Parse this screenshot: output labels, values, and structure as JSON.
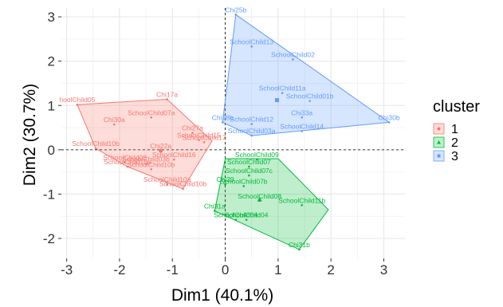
{
  "chart_data": {
    "type": "scatter",
    "xlabel": "Dim1 (40.1%)",
    "ylabel": "Dim2 (30.7%)",
    "xlim": [
      -3.1,
      3.4
    ],
    "ylim": [
      -2.45,
      3.2
    ],
    "xticks": [
      -3,
      -2,
      -1,
      0,
      1,
      2,
      3
    ],
    "yticks": [
      -2,
      -1,
      0,
      1,
      2,
      3
    ],
    "grid": true,
    "legend": {
      "title": "cluster",
      "position": "right",
      "entries": [
        {
          "label": "1",
          "color": "#F8766D"
        },
        {
          "label": "2",
          "color": "#00BA38"
        },
        {
          "label": "3",
          "color": "#619CFF"
        }
      ]
    },
    "series": [
      {
        "name": "1",
        "color": "#F8766D",
        "hull": [
          [
            -2.8,
            1.02
          ],
          [
            -1.1,
            1.14
          ],
          [
            -0.25,
            0.2
          ],
          [
            -0.8,
            -0.88
          ],
          [
            -1.85,
            -0.38
          ],
          [
            -2.45,
            0.03
          ]
        ],
        "centroid": [
          -1.22,
          -0.02
        ],
        "points": [
          {
            "label": "hoolChild05",
            "x": -2.8,
            "y": 1.02
          },
          {
            "label": "Chi17a",
            "x": -1.1,
            "y": 1.14
          },
          {
            "label": "SchoolChild07a",
            "x": -1.4,
            "y": 0.73
          },
          {
            "label": "Chi30a",
            "x": -2.1,
            "y": 0.57
          },
          {
            "label": "Chi27a",
            "x": -0.62,
            "y": 0.38
          },
          {
            "label": "SchoolChild15",
            "x": -0.5,
            "y": 0.22
          },
          {
            "label": "SchoolChild17",
            "x": -0.4,
            "y": 0.17
          },
          {
            "label": "SchoolChild10b",
            "x": -2.45,
            "y": 0.03
          },
          {
            "label": "Chi22a",
            "x": -1.22,
            "y": -0.02
          },
          {
            "label": "SchoolChild16",
            "x": -0.97,
            "y": -0.22
          },
          {
            "label": "SchoolChild08",
            "x": -1.9,
            "y": -0.28
          },
          {
            "label": "SchoolChild03b",
            "x": -1.5,
            "y": -0.32
          },
          {
            "label": "SchoolChild10a",
            "x": -1.85,
            "y": -0.38
          },
          {
            "label": "SchoolChild10b",
            "x": -1.4,
            "y": -0.44
          },
          {
            "label": "SchoolChild10a",
            "x": -1.1,
            "y": -0.78
          },
          {
            "label": "SchoolChild10b",
            "x": -0.8,
            "y": -0.88
          }
        ]
      },
      {
        "name": "2",
        "color": "#00BA38",
        "hull": [
          [
            0.0,
            -0.2
          ],
          [
            1.0,
            -0.2
          ],
          [
            1.95,
            -1.35
          ],
          [
            1.4,
            -2.25
          ],
          [
            -0.2,
            -1.38
          ]
        ],
        "centroid": [
          0.65,
          -1.12
        ],
        "points": [
          {
            "label": "SchoolChild09",
            "x": 0.6,
            "y": -0.22
          },
          {
            "label": "SchoolChild07",
            "x": 0.45,
            "y": -0.38
          },
          {
            "label": "SchoolChild07c",
            "x": 0.45,
            "y": -0.58
          },
          {
            "label": "Chi29",
            "x": 0.0,
            "y": -0.78
          },
          {
            "label": "SchoolChild07b",
            "x": 0.35,
            "y": -0.82
          },
          {
            "label": "SchoolChild08",
            "x": 0.65,
            "y": -1.15
          },
          {
            "label": "SchoolChild11b",
            "x": 1.45,
            "y": -1.25
          },
          {
            "label": "Chi31a",
            "x": -0.2,
            "y": -1.38
          },
          {
            "label": "SchoolChild04",
            "x": 0.2,
            "y": -1.58
          },
          {
            "label": "SchoolChild04",
            "x": 0.4,
            "y": -1.58
          },
          {
            "label": "Chi31b",
            "x": 1.4,
            "y": -2.25
          }
        ]
      },
      {
        "name": "3",
        "color": "#619CFF",
        "hull": [
          [
            0.2,
            3.05
          ],
          [
            3.1,
            0.62
          ],
          [
            0.5,
            0.32
          ],
          [
            -0.05,
            0.62
          ]
        ],
        "centroid": [
          0.98,
          1.12
        ],
        "points": [
          {
            "label": "Chi25b",
            "x": 0.2,
            "y": 3.05
          },
          {
            "label": "SchoolChild13",
            "x": 0.5,
            "y": 2.33
          },
          {
            "label": "SchoolChild02",
            "x": 1.28,
            "y": 2.04
          },
          {
            "label": "SchoolChild11a",
            "x": 1.08,
            "y": 1.28
          },
          {
            "label": "SchoolChild01b",
            "x": 1.6,
            "y": 1.1
          },
          {
            "label": "Chi33a",
            "x": 1.45,
            "y": 0.73
          },
          {
            "label": "Chi30b",
            "x": 3.1,
            "y": 0.62
          },
          {
            "label": "Chi28b",
            "x": -0.05,
            "y": 0.62
          },
          {
            "label": "SchoolChild12",
            "x": 0.5,
            "y": 0.58
          },
          {
            "label": "SchoolChild14",
            "x": 1.45,
            "y": 0.42
          },
          {
            "label": "SchoolChild03a",
            "x": 0.5,
            "y": 0.32
          }
        ]
      }
    ]
  }
}
